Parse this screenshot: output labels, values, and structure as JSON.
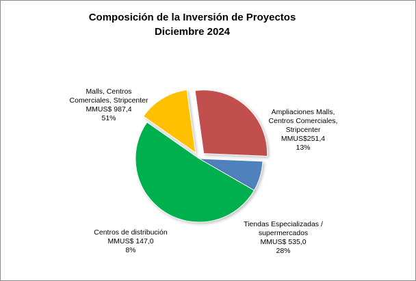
{
  "chart_data": {
    "type": "pie",
    "title": [
      "Composición de la Inversión de Proyectos",
      "Diciembre 2024"
    ],
    "unit": "MMUS$",
    "slices": [
      {
        "label_lines": [
          "Ampliaciones Malls,",
          "Centros Comerciales,",
          "Stripcenter"
        ],
        "value": 251.4,
        "value_text": "MMUS$251,4",
        "percent": 13,
        "percent_text": "13%",
        "color": "#FFC000",
        "exploded": true
      },
      {
        "label_lines": [
          "Tiendas Especializadas /",
          "supermercados"
        ],
        "value": 535.0,
        "value_text": "MMUS$ 535,0",
        "percent": 28,
        "percent_text": "28%",
        "color": "#C0504D",
        "exploded": true
      },
      {
        "label_lines": [
          "Centros de distribución"
        ],
        "value": 147.0,
        "value_text": "MMUS$ 147,0",
        "percent": 8,
        "percent_text": "8%",
        "color": "#4F81BD",
        "exploded": false
      },
      {
        "label_lines": [
          "Malls, Centros",
          "Comerciales, Stripcenter"
        ],
        "value": 987.4,
        "value_text": "MMUS$ 987,4",
        "percent": 51,
        "percent_text": "51%",
        "color": "#00B050",
        "exploded": false
      }
    ],
    "legend": "none"
  }
}
